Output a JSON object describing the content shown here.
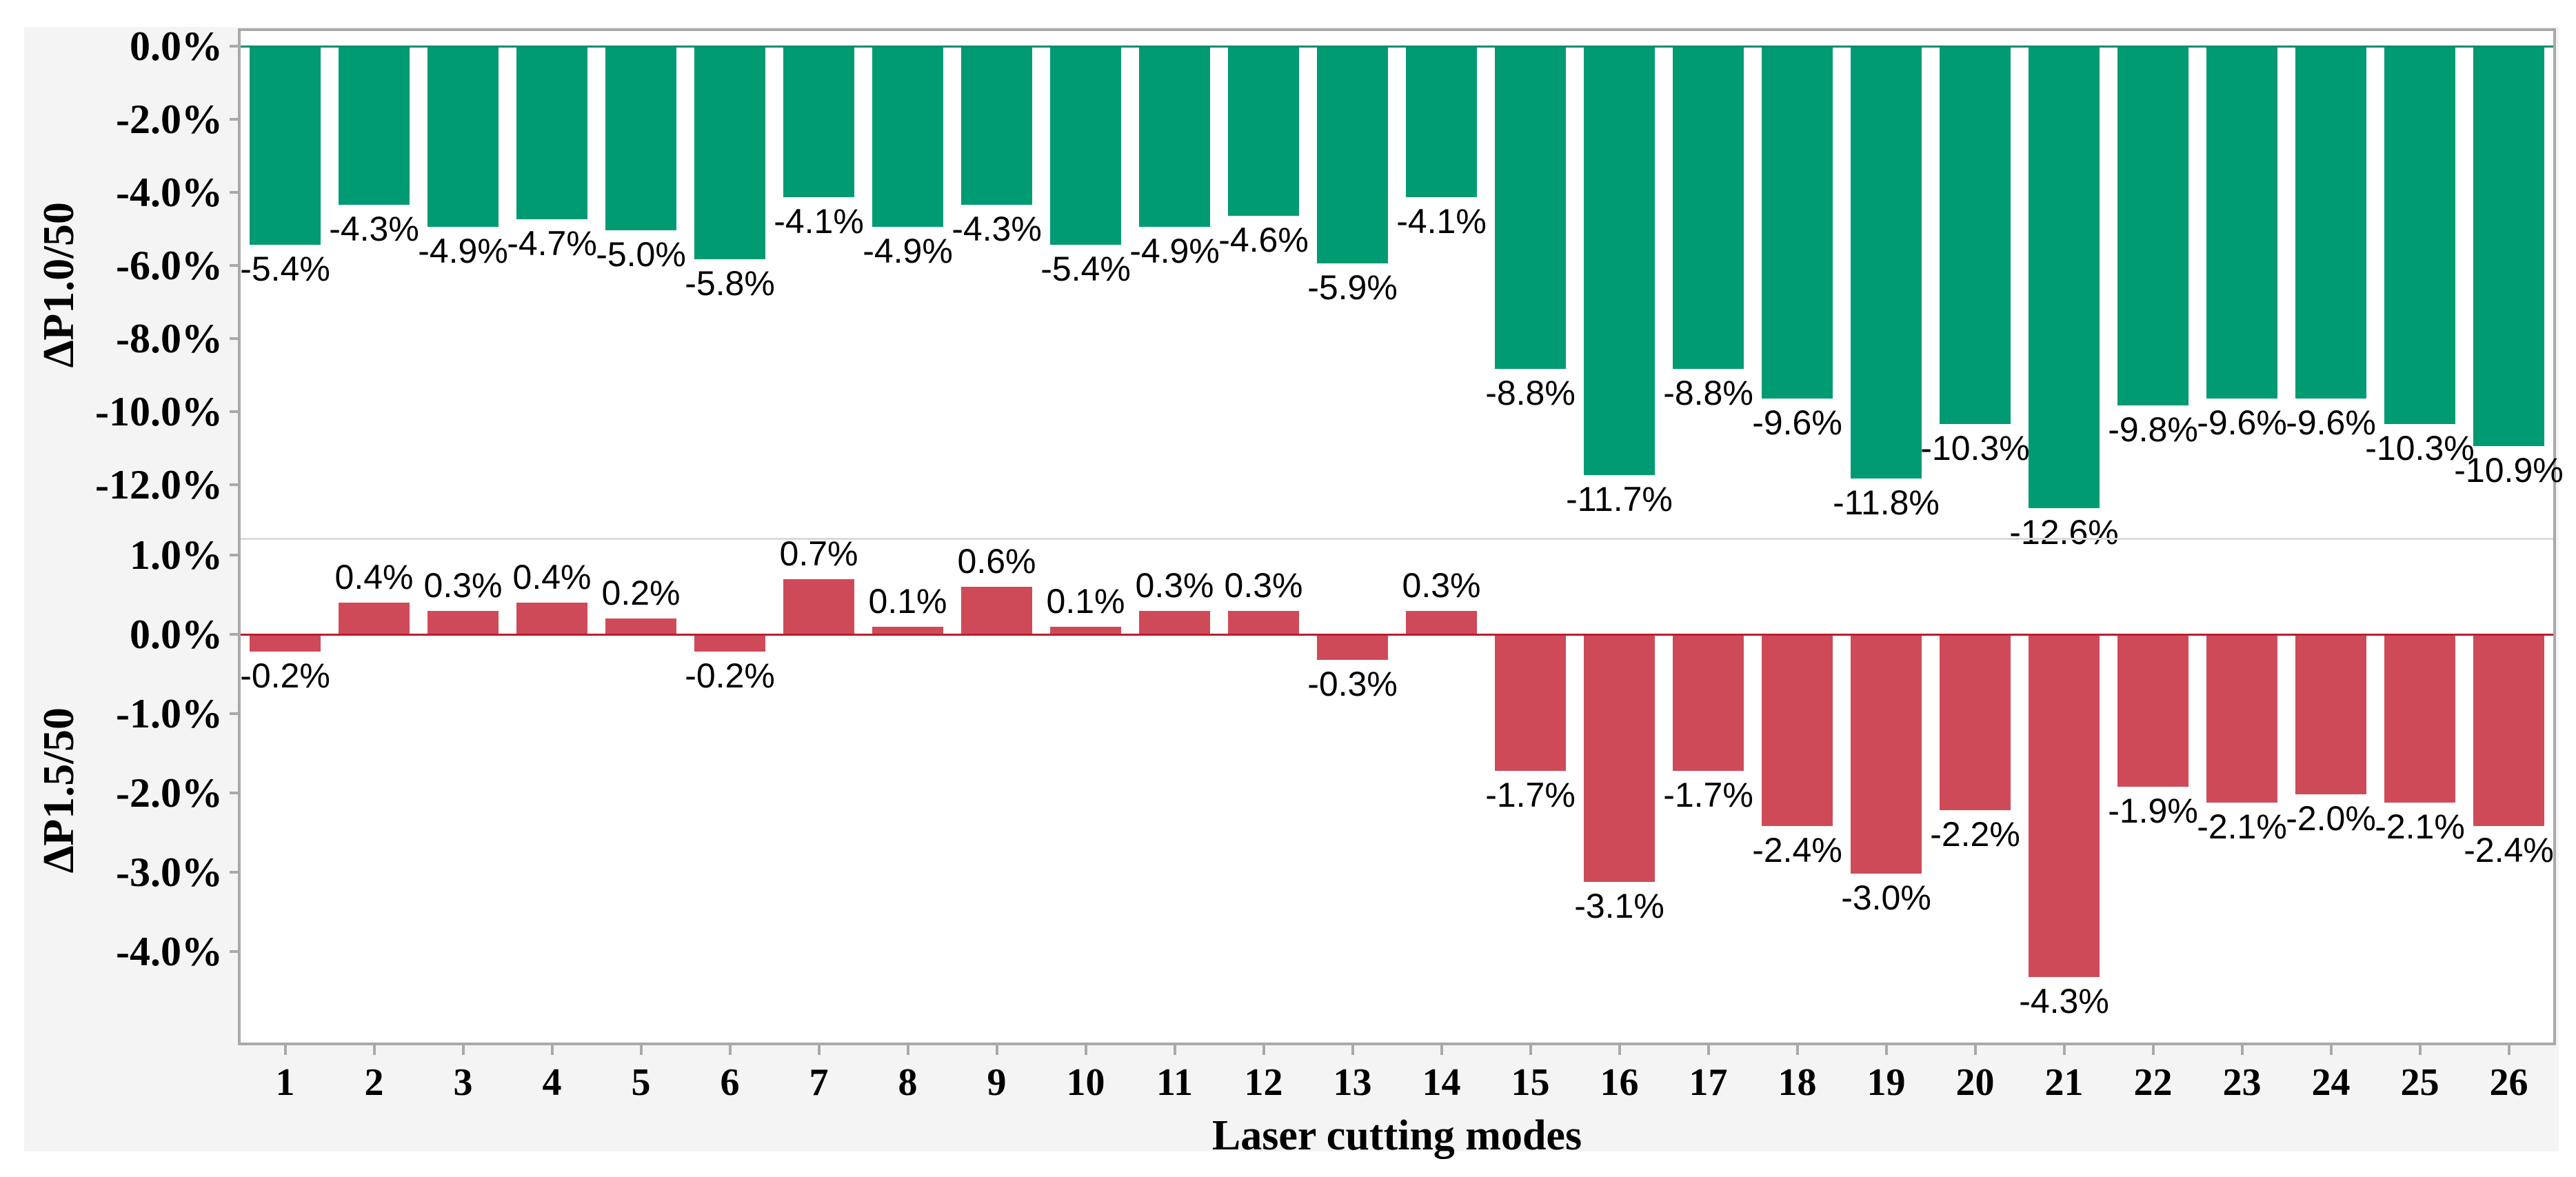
{
  "figure": {
    "x_axis_title": "Laser cutting modes",
    "background_color": "#f4f4f4",
    "plot_border_color": "#a9a9a9"
  },
  "chart_data": [
    {
      "type": "bar",
      "panel": "top",
      "ylabel": "∆P1.0/50",
      "xlabel": "Laser cutting modes",
      "categories": [
        "1",
        "2",
        "3",
        "4",
        "5",
        "6",
        "7",
        "8",
        "9",
        "10",
        "11",
        "12",
        "13",
        "14",
        "15",
        "16",
        "17",
        "18",
        "19",
        "20",
        "21",
        "22",
        "23",
        "24",
        "25",
        "26"
      ],
      "values": [
        -5.4,
        -4.3,
        -4.9,
        -4.7,
        -5.0,
        -5.8,
        -4.1,
        -4.9,
        -4.3,
        -5.4,
        -4.9,
        -4.6,
        -5.9,
        -4.1,
        -8.8,
        -11.7,
        -8.8,
        -9.6,
        -11.8,
        -10.3,
        -12.6,
        -9.8,
        -9.6,
        -9.6,
        -10.3,
        -10.9
      ],
      "labels": [
        "-5.4%",
        "-4.3%",
        "-4.9%",
        "-4.7%",
        "-5.0%",
        "-5.8%",
        "-4.1%",
        "-4.9%",
        "-4.3%",
        "-5.4%",
        "-4.9%",
        "-4.6%",
        "-5.9%",
        "-4.1%",
        "-8.8%",
        "-11.7%",
        "-8.8%",
        "-9.6%",
        "-11.8%",
        "-10.3%",
        "-12.6%",
        "-9.8%",
        "-9.6%",
        "-9.6%",
        "-10.3%",
        "-10.9%"
      ],
      "yticks": [
        0,
        -2,
        -4,
        -6,
        -8,
        -10,
        -12
      ],
      "ytick_labels": [
        "0.0%",
        "-2.0%",
        "-4.0%",
        "-6.0%",
        "-8.0%",
        "-10.0%",
        "-12.0%"
      ],
      "ylim": [
        -13.5,
        0.45
      ],
      "grid": false,
      "legend": "none",
      "bar_color": "#009b73",
      "zero_line_color": "#00916e"
    },
    {
      "type": "bar",
      "panel": "bottom",
      "ylabel": "∆P1.5/50",
      "xlabel": "Laser cutting modes",
      "categories": [
        "1",
        "2",
        "3",
        "4",
        "5",
        "6",
        "7",
        "8",
        "9",
        "10",
        "11",
        "12",
        "13",
        "14",
        "15",
        "16",
        "17",
        "18",
        "19",
        "20",
        "21",
        "22",
        "23",
        "24",
        "25",
        "26"
      ],
      "values": [
        -0.2,
        0.4,
        0.3,
        0.4,
        0.2,
        -0.2,
        0.7,
        0.1,
        0.6,
        0.1,
        0.3,
        0.3,
        -0.3,
        0.3,
        -1.7,
        -3.1,
        -1.7,
        -2.4,
        -3.0,
        -2.2,
        -4.3,
        -1.9,
        -2.1,
        -2.0,
        -2.1,
        -2.4
      ],
      "labels": [
        "-0.2%",
        "0.4%",
        "0.3%",
        "0.4%",
        "0.2%",
        "-0.2%",
        "0.7%",
        "0.1%",
        "0.6%",
        "0.1%",
        "0.3%",
        "0.3%",
        "-0.3%",
        "0.3%",
        "-1.7%",
        "-3.1%",
        "-1.7%",
        "-2.4%",
        "-3.0%",
        "-2.2%",
        "-4.3%",
        "-1.9%",
        "-2.1%",
        "-2.0%",
        "-2.1%",
        "-2.4%"
      ],
      "yticks": [
        1,
        0,
        -1,
        -2,
        -3,
        -4
      ],
      "ytick_labels": [
        "1.0%",
        "0.0%",
        "-1.0%",
        "-2.0%",
        "-3.0%",
        "-4.0%"
      ],
      "ylim": [
        -5.15,
        1.2
      ],
      "grid": false,
      "legend": "none",
      "bar_color": "#cf4a58",
      "zero_line_color": "#b91f2e"
    }
  ]
}
